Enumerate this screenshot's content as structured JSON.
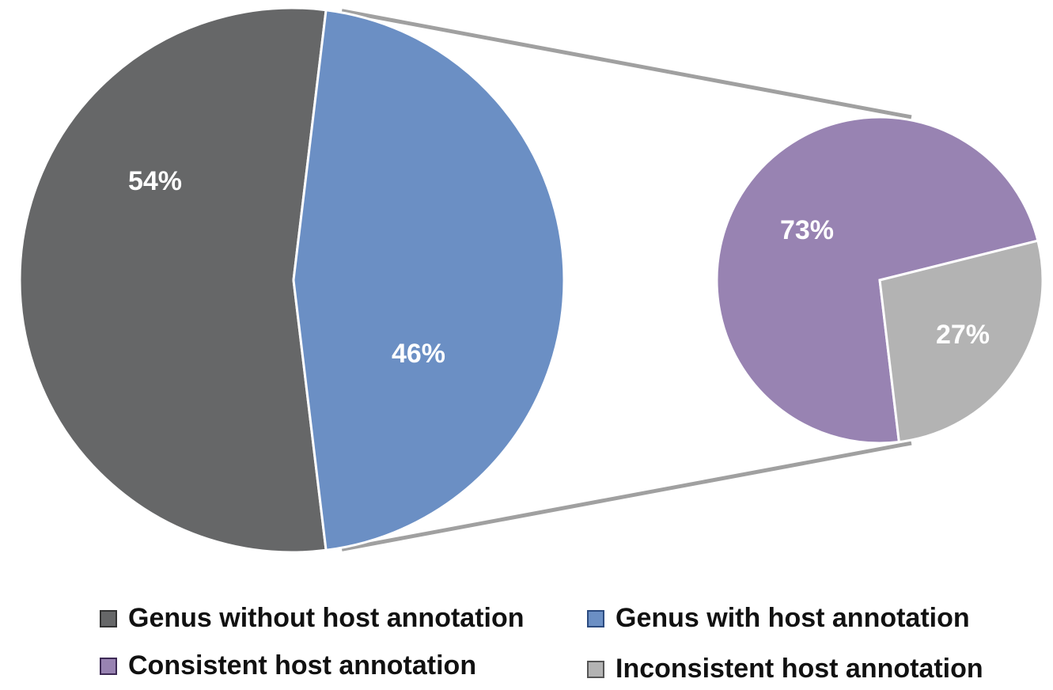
{
  "chart_data": {
    "type": "pie",
    "subtype": "pie-of-pie",
    "main_pie": {
      "slices": [
        {
          "label": "Genus without host annotation",
          "value": 54,
          "value_label": "54%",
          "color": "#666768"
        },
        {
          "label": "Genus with host annotation",
          "value": 46,
          "value_label": "46%",
          "color": "#6b8fc4"
        }
      ]
    },
    "secondary_pie": {
      "breakdown_of": "Genus with host annotation",
      "slices": [
        {
          "label": "Consistent host annotation",
          "value": 73,
          "value_label": "73%",
          "color": "#9883b2"
        },
        {
          "label": "Inconsistent host annotation",
          "value": 27,
          "value_label": "27%",
          "color": "#b3b3b3"
        }
      ]
    },
    "connector_color": "#a0a0a0",
    "legend": {
      "placement": "bottom",
      "entries": [
        {
          "label": "Genus without host annotation",
          "color": "#666768",
          "border": "#333333"
        },
        {
          "label": "Genus with host annotation",
          "color": "#6b8fc4",
          "border": "#2b4b80"
        },
        {
          "label": "Consistent host annotation",
          "color": "#9883b2",
          "border": "#3d2a55"
        },
        {
          "label": "Inconsistent host annotation",
          "color": "#b3b3b3",
          "border": "#555555"
        }
      ]
    }
  }
}
